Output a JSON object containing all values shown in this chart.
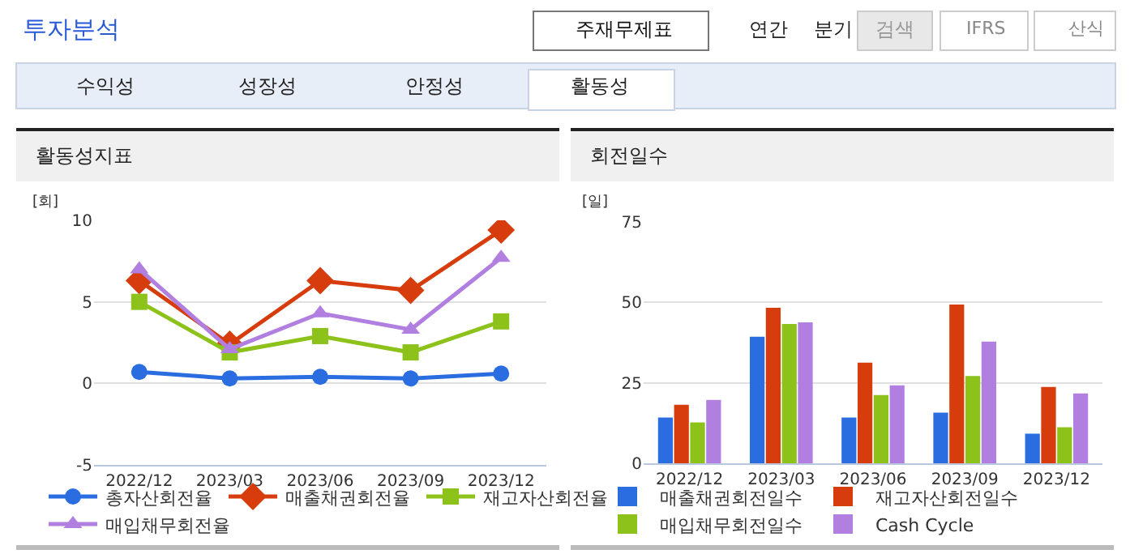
{
  "chart_data": [
    {
      "type": "line",
      "title": "활동성지표",
      "ylabel": "[회]",
      "annotations": [
        "투자분석",
        "주재무제표",
        "연간",
        "분기",
        "검색",
        "IFRS",
        "산식",
        "수익성",
        "성장성",
        "안정성",
        "활동성"
      ],
      "categories": [
        "2022/12",
        "2023/03",
        "2023/06",
        "2023/09",
        "2023/12"
      ],
      "series": [
        {
          "name": "총자산회전율",
          "color": "#2a6de0",
          "marker": "circle",
          "values": [
            0.7,
            0.3,
            0.4,
            0.3,
            0.6
          ]
        },
        {
          "name": "매출채권회전율",
          "color": "#d63c0c",
          "marker": "diamond",
          "values": [
            6.3,
            2.4,
            6.3,
            5.7,
            9.4
          ]
        },
        {
          "name": "재고자산회전율",
          "color": "#8cc21a",
          "marker": "square",
          "values": [
            5.0,
            1.9,
            2.9,
            1.9,
            3.8
          ]
        },
        {
          "name": "매입채무회전율",
          "color": "#b07fe0",
          "marker": "triangle",
          "values": [
            7.0,
            2.1,
            4.3,
            3.3,
            7.7
          ]
        }
      ],
      "ylim": [
        -5,
        10
      ],
      "yticks": [
        -5,
        0,
        5,
        10
      ],
      "grid": "y",
      "legend": "bottom"
    },
    {
      "type": "bar",
      "title": "회전일수",
      "ylabel": "[일]",
      "categories": [
        "2022/12",
        "2023/03",
        "2023/06",
        "2023/09",
        "2023/12"
      ],
      "series": [
        {
          "name": "매출채권회전일수",
          "color": "#2a6de0",
          "values": [
            14.2,
            39.3,
            14.2,
            15.7,
            9.2
          ]
        },
        {
          "name": "재고자산회전일수",
          "color": "#d63c0c",
          "values": [
            18.2,
            48.3,
            31.3,
            49.3,
            23.7
          ]
        },
        {
          "name": "매입채무회전일수",
          "color": "#8cc21a",
          "values": [
            12.7,
            43.3,
            21.2,
            27.1,
            11.2
          ]
        },
        {
          "name": "Cash Cycle",
          "color": "#b07fe0",
          "values": [
            19.7,
            43.8,
            24.2,
            37.8,
            21.7
          ]
        }
      ],
      "ylim": [
        0,
        75
      ],
      "yticks": [
        0,
        25,
        50,
        75
      ],
      "grid": "y",
      "legend": "bottom"
    }
  ]
}
